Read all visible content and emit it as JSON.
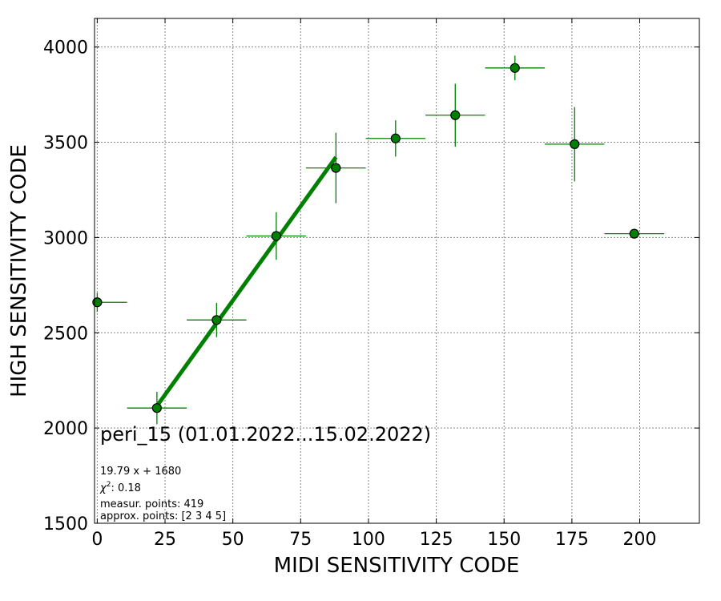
{
  "chart_data": {
    "type": "scatter",
    "xlabel": "MIDI SENSITIVITY CODE",
    "ylabel": "HIGH SENSITIVITY CODE",
    "xlim": [
      -1,
      222
    ],
    "ylim": [
      1500,
      4150
    ],
    "xticks": [
      0,
      25,
      50,
      75,
      100,
      125,
      150,
      175,
      200
    ],
    "yticks": [
      1500,
      2000,
      2500,
      3000,
      3500,
      4000
    ],
    "grid": true,
    "color": "#008000",
    "points": [
      {
        "x": 0,
        "y": 2660,
        "xerr": 11,
        "yerr": 50
      },
      {
        "x": 22,
        "y": 2105,
        "xerr": 11,
        "yerr": 85
      },
      {
        "x": 44,
        "y": 2567,
        "xerr": 11,
        "yerr": 90
      },
      {
        "x": 66,
        "y": 3008,
        "xerr": 11,
        "yerr": 125
      },
      {
        "x": 88,
        "y": 3365,
        "xerr": 11,
        "yerr": 185
      },
      {
        "x": 110,
        "y": 3520,
        "xerr": 11,
        "yerr": 95
      },
      {
        "x": 132,
        "y": 3642,
        "xerr": 11,
        "yerr": 165
      },
      {
        "x": 154,
        "y": 3890,
        "xerr": 11,
        "yerr": 65
      },
      {
        "x": 176,
        "y": 3490,
        "xerr": 11,
        "yerr": 195
      },
      {
        "x": 198,
        "y": 3020,
        "xerr": 11,
        "yerr": 0
      }
    ],
    "fit": {
      "slope": 19.79,
      "intercept": 1680,
      "x_range": [
        22,
        88
      ]
    },
    "annotations": {
      "title": "peri_15 (01.01.2022...15.02.2022)",
      "equation": "19.79 x + 1680",
      "chi2_label": "χ",
      "chi2_value": ": 0.18",
      "measur": "measur. points: 419",
      "approx": "approx. points: [2 3 4 5]"
    }
  }
}
